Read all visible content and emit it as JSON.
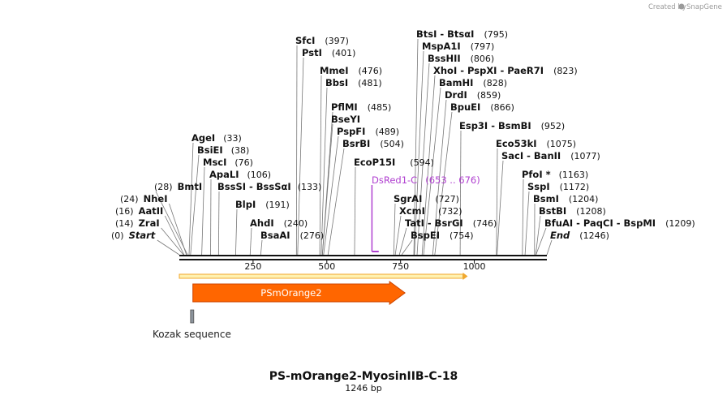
{
  "branding": {
    "created_by": "Created by",
    "app_name": "SnapGene"
  },
  "map": {
    "length_bp": 1246,
    "title": "PS-mOrange2-MyosinIIB-C-18",
    "subtitle": "1246 bp",
    "ticks": [
      250,
      500,
      750,
      1000
    ],
    "start_label": "Start",
    "start_position": "(0)",
    "end_label": "End",
    "end_position": "(1246)"
  },
  "sites": [
    {
      "name": "ZraI",
      "position": 14,
      "display": "(14)",
      "side": "left"
    },
    {
      "name": "AatII",
      "position": 16,
      "display": "(16)",
      "side": "left"
    },
    {
      "name": "NheI",
      "position": 24,
      "display": "(24)",
      "side": "left"
    },
    {
      "name": "BmtI",
      "position": 28,
      "display": "(28)",
      "side": "left"
    },
    {
      "name": "AgeI",
      "position": 33,
      "display": "(33)",
      "side": "right"
    },
    {
      "name": "BsiEI",
      "position": 38,
      "display": "(38)",
      "side": "right"
    },
    {
      "name": "MscI",
      "position": 76,
      "display": "(76)",
      "side": "right"
    },
    {
      "name": "ApaLI",
      "position": 106,
      "display": "(106)",
      "side": "right"
    },
    {
      "name": "BssSI  -  BssSαI",
      "position": 133,
      "display": "(133)",
      "side": "right"
    },
    {
      "name": "BlpI",
      "position": 191,
      "display": "(191)",
      "side": "right"
    },
    {
      "name": "AhdI",
      "position": 240,
      "display": "(240)",
      "side": "right"
    },
    {
      "name": "BsaAI",
      "position": 276,
      "display": "(276)",
      "side": "right"
    },
    {
      "name": "SfcI",
      "position": 397,
      "display": "(397)",
      "side": "right"
    },
    {
      "name": "PstI",
      "position": 401,
      "display": "(401)",
      "side": "right"
    },
    {
      "name": "MmeI",
      "position": 476,
      "display": "(476)",
      "side": "right"
    },
    {
      "name": "BbsI",
      "position": 481,
      "display": "(481)",
      "side": "right"
    },
    {
      "name": "PflMI",
      "position": 485,
      "display": "(485)",
      "side": "right"
    },
    {
      "name": "BseYI",
      "position": 485,
      "display": "",
      "side": "right"
    },
    {
      "name": "PspFI",
      "position": 489,
      "display": "(489)",
      "side": "right"
    },
    {
      "name": "BsrBI",
      "position": 504,
      "display": "(504)",
      "side": "right"
    },
    {
      "name": "EcoP15I",
      "position": 594,
      "display": "(594)",
      "side": "right"
    },
    {
      "name": "SgrAI",
      "position": 727,
      "display": "(727)",
      "side": "right"
    },
    {
      "name": "XcmI",
      "position": 732,
      "display": "(732)",
      "side": "right"
    },
    {
      "name": "TatI  -  BsrGI",
      "position": 746,
      "display": "(746)",
      "side": "right"
    },
    {
      "name": "BspEI",
      "position": 754,
      "display": "(754)",
      "side": "right"
    },
    {
      "name": "BtsI  -  BtsαI",
      "position": 795,
      "display": "(795)",
      "side": "right"
    },
    {
      "name": "MspA1I",
      "position": 797,
      "display": "(797)",
      "side": "right"
    },
    {
      "name": "BssHII",
      "position": 806,
      "display": "(806)",
      "side": "right"
    },
    {
      "name": "XhoI  -  PspXI  -  PaeR7I",
      "position": 823,
      "display": "(823)",
      "side": "right"
    },
    {
      "name": "BamHI",
      "position": 828,
      "display": "(828)",
      "side": "right"
    },
    {
      "name": "DrdI",
      "position": 859,
      "display": "(859)",
      "side": "right"
    },
    {
      "name": "BpuEI",
      "position": 866,
      "display": "(866)",
      "side": "right"
    },
    {
      "name": "Esp3I  -  BsmBI",
      "position": 952,
      "display": "(952)",
      "side": "right"
    },
    {
      "name": "Eco53kI",
      "position": 1075,
      "display": "(1075)",
      "side": "right"
    },
    {
      "name": "SacI  -  BanII",
      "position": 1077,
      "display": "(1077)",
      "side": "right"
    },
    {
      "name": "PfoI *",
      "position": 1163,
      "display": "(1163)",
      "side": "right"
    },
    {
      "name": "SspI",
      "position": 1172,
      "display": "(1172)",
      "side": "right"
    },
    {
      "name": "BsmI",
      "position": 1204,
      "display": "(1204)",
      "side": "right"
    },
    {
      "name": "BstBI",
      "position": 1208,
      "display": "(1208)",
      "side": "right"
    },
    {
      "name": "BfuAI  -  PaqCI  -  BspMI",
      "position": 1209,
      "display": "(1209)",
      "side": "right"
    }
  ],
  "primer": {
    "name": "DsRed1-C",
    "range": "(653 .. 676)",
    "start": 653,
    "end": 676,
    "color": "#b040d0"
  },
  "features": [
    {
      "name": "PSmOrange2",
      "start": 46,
      "end": 765,
      "color": "#ff6600",
      "direction": "forward"
    },
    {
      "name": "Kozak sequence",
      "start": 38,
      "end": 48,
      "color": "#8c949c"
    }
  ],
  "orf": {
    "start": 0,
    "end": 975,
    "color": "#f0a830"
  }
}
